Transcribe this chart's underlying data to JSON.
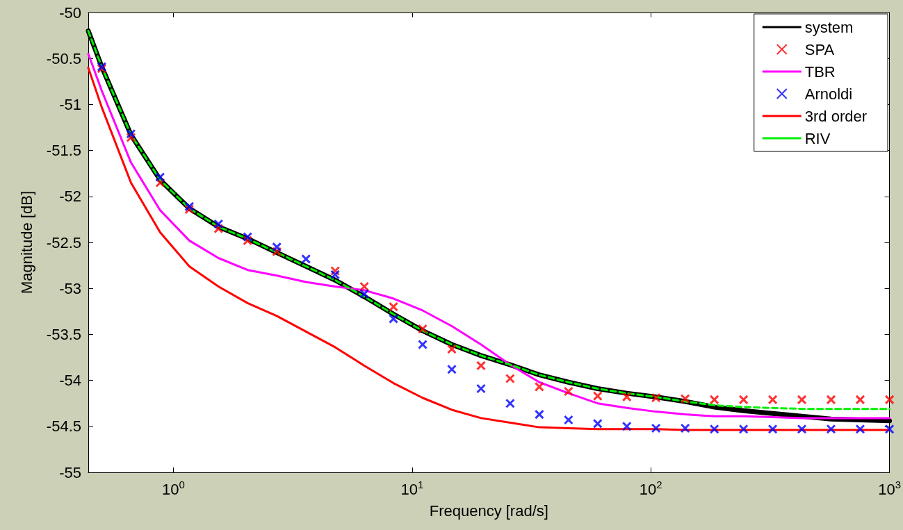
{
  "chart_data": {
    "type": "line",
    "xlabel": "Frequency [rad/s]",
    "ylabel": "Magnitude [dB]",
    "log": "x",
    "xlim": [
      0.44,
      1000
    ],
    "xticks": [
      {
        "value": 1,
        "label": "10$^{0}$"
      },
      {
        "value": 10,
        "label": "10$^{1}$"
      },
      {
        "value": 100,
        "label": "10$^{2}$"
      },
      {
        "value": 1000,
        "label": "10$^{3}$"
      }
    ],
    "ylim": [
      -55,
      -50
    ],
    "yticks": [
      -55,
      -54.5,
      -54,
      -53.5,
      -53,
      -52.5,
      -52,
      -51.5,
      -51,
      -50.5,
      -50
    ],
    "grid": false,
    "legend": "top right",
    "series": [
      {
        "name": "system",
        "color": "#000000",
        "line_style": "solid",
        "x": [
          0.44,
          0.501,
          0.664,
          0.88,
          1.166,
          1.545,
          2.046,
          2.712,
          3.593,
          4.761,
          6.307,
          8.356,
          11.07,
          14.67,
          19.44,
          25.75,
          34.12,
          45.21,
          59.9,
          79.35,
          105.1,
          139.3,
          184.6,
          244.6,
          324.1,
          429.4,
          568.9,
          753.8,
          1000
        ],
        "values": [
          -50.2,
          -50.59,
          -51.33,
          -51.82,
          -52.13,
          -52.33,
          -52.46,
          -52.61,
          -52.76,
          -52.91,
          -53.09,
          -53.28,
          -53.46,
          -53.61,
          -53.73,
          -53.83,
          -53.94,
          -54.02,
          -54.09,
          -54.14,
          -54.18,
          -54.23,
          -54.29,
          -54.33,
          -54.36,
          -54.39,
          -54.42,
          -54.43,
          -54.44
        ]
      },
      {
        "name": "SPA",
        "type": "scatter",
        "color": "#ff0000",
        "marker": "cross",
        "x": [
          0.501,
          0.664,
          0.88,
          1.166,
          1.545,
          2.046,
          2.712,
          3.593,
          4.761,
          6.307,
          8.356,
          11.07,
          14.67,
          19.44,
          25.75,
          34.12,
          45.21,
          59.9,
          79.35,
          105.1,
          139.3,
          184.6,
          244.6,
          324.1,
          429.4,
          568.9,
          753.8,
          1000
        ],
        "values": [
          -50.61,
          -51.36,
          -51.85,
          -52.14,
          -52.35,
          -52.48,
          -52.6,
          null,
          -52.81,
          -52.98,
          -53.2,
          -53.44,
          -53.66,
          -53.84,
          -53.98,
          -54.07,
          -54.12,
          -54.17,
          -54.18,
          -54.19,
          -54.2,
          -54.21,
          -54.21,
          -54.21,
          -54.21,
          -54.21,
          -54.21,
          -54.21
        ]
      },
      {
        "name": "TBR",
        "color": "#ff00ff",
        "line_style": "solid",
        "x": [
          0.44,
          0.501,
          0.664,
          0.88,
          1.166,
          1.545,
          2.046,
          2.712,
          3.593,
          4.761,
          6.307,
          8.356,
          11.07,
          14.67,
          19.44,
          25.75,
          34.12,
          45.21,
          59.9,
          79.35,
          105.1,
          139.3,
          184.6,
          244.6,
          324.1,
          429.4,
          568.9,
          753.8,
          1000
        ],
        "values": [
          -50.45,
          -50.85,
          -51.63,
          -52.15,
          -52.48,
          -52.67,
          -52.8,
          -52.86,
          -52.93,
          -52.98,
          -53.02,
          -53.11,
          -53.24,
          -53.41,
          -53.61,
          -53.83,
          -54.02,
          -54.14,
          -54.25,
          -54.3,
          -54.34,
          -54.37,
          -54.39,
          -54.39,
          -54.4,
          -54.41,
          -54.41,
          -54.41,
          -54.41
        ]
      },
      {
        "name": "Arnoldi",
        "type": "scatter",
        "color": "#0000ff",
        "marker": "cross",
        "x": [
          0.501,
          0.664,
          0.88,
          1.166,
          1.545,
          2.046,
          2.712,
          3.593,
          4.761,
          6.307,
          8.356,
          11.07,
          14.67,
          19.44,
          25.75,
          34.12,
          45.21,
          59.9,
          79.35,
          105.1,
          139.3,
          184.6,
          244.6,
          324.1,
          429.4,
          568.9,
          753.8,
          1000
        ],
        "values": [
          -50.59,
          -51.32,
          -51.79,
          -52.11,
          -52.3,
          -52.44,
          -52.55,
          -52.68,
          -52.85,
          -53.06,
          -53.33,
          -53.61,
          -53.88,
          -54.09,
          -54.25,
          -54.37,
          -54.43,
          -54.47,
          -54.5,
          -54.52,
          -54.52,
          -54.53,
          -54.53,
          -54.53,
          -54.53,
          -54.53,
          -54.53,
          -54.53
        ]
      },
      {
        "name": "3rd order",
        "color": "#ff0000",
        "line_style": "solid",
        "x": [
          0.44,
          0.501,
          0.664,
          0.88,
          1.166,
          1.545,
          2.046,
          2.712,
          3.593,
          4.761,
          6.307,
          8.356,
          11.07,
          14.67,
          19.44,
          25.75,
          34.12,
          45.21,
          59.9,
          79.35,
          105.1,
          139.3,
          184.6,
          244.6,
          324.1,
          429.4,
          568.9,
          753.8,
          1000
        ],
        "values": [
          -50.6,
          -51.03,
          -51.85,
          -52.39,
          -52.76,
          -52.98,
          -53.16,
          -53.3,
          -53.47,
          -53.64,
          -53.84,
          -54.03,
          -54.19,
          -54.32,
          -54.41,
          -54.46,
          -54.51,
          -54.52,
          -54.53,
          -54.53,
          -54.53,
          -54.54,
          -54.54,
          -54.54,
          -54.54,
          -54.54,
          -54.54,
          -54.54,
          -54.54
        ]
      },
      {
        "name": "RIV",
        "color": "#00ee00",
        "line_style": "dashed",
        "x": [
          0.44,
          0.501,
          0.664,
          0.88,
          1.166,
          1.545,
          2.046,
          2.712,
          3.593,
          4.761,
          6.307,
          8.356,
          11.07,
          14.67,
          19.44,
          25.75,
          34.12,
          45.21,
          59.9,
          79.35,
          105.1,
          139.3,
          184.6,
          244.6,
          324.1,
          429.4,
          568.9,
          753.8,
          1000
        ],
        "values": [
          -50.2,
          -50.59,
          -51.33,
          -51.82,
          -52.13,
          -52.33,
          -52.46,
          -52.61,
          -52.76,
          -52.91,
          -53.09,
          -53.28,
          -53.46,
          -53.61,
          -53.73,
          -53.83,
          -53.94,
          -54.02,
          -54.09,
          -54.14,
          -54.18,
          -54.23,
          -54.27,
          -54.29,
          -54.3,
          -54.31,
          -54.31,
          -54.31,
          -54.31
        ]
      }
    ]
  }
}
